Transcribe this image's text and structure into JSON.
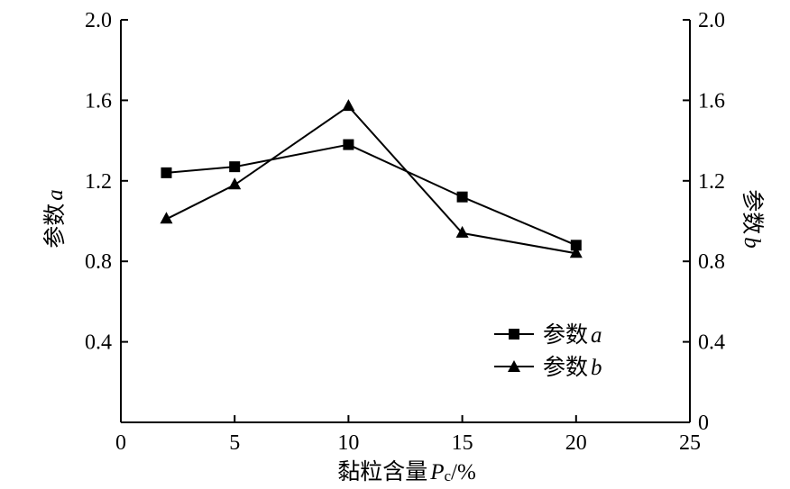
{
  "chart_data": {
    "type": "line",
    "x": [
      2,
      5,
      10,
      15,
      20
    ],
    "series": [
      {
        "name": "参数",
        "name_var": "a",
        "axis": "left",
        "marker": "square",
        "values": [
          1.24,
          1.27,
          1.38,
          1.12,
          0.88
        ]
      },
      {
        "name": "参数",
        "name_var": "b",
        "axis": "right",
        "marker": "triangle",
        "values": [
          1.01,
          1.18,
          1.57,
          0.94,
          0.84
        ]
      }
    ],
    "xlabel": {
      "text": "黏粒含量",
      "var": "P",
      "sub": "c",
      "unit": "/%"
    },
    "ylabel_left": {
      "text": "参数",
      "var": "a"
    },
    "ylabel_right": {
      "text": "参数",
      "var": "b"
    },
    "xlim": [
      0,
      25
    ],
    "ylim": [
      0,
      2.0
    ],
    "x_ticks": [
      "0",
      "5",
      "10",
      "15",
      "20",
      "25"
    ],
    "y_ticks_left": [
      "0.4",
      "0.8",
      "1.2",
      "1.6",
      "2.0"
    ],
    "y_ticks_right": [
      "0",
      "0.4",
      "0.8",
      "1.2",
      "1.6",
      "2.0"
    ],
    "grid": false,
    "legend_position": "bottom-right"
  }
}
